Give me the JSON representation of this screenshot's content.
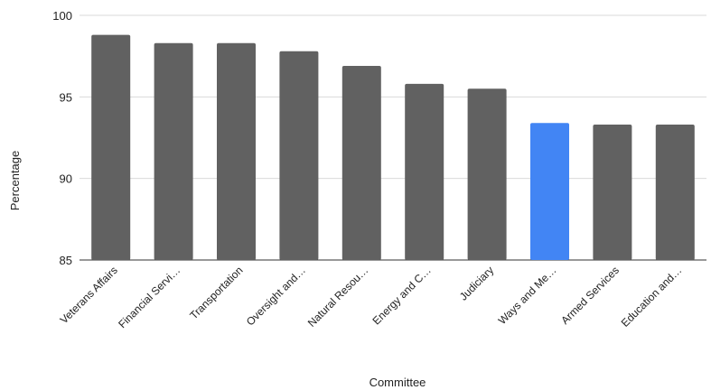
{
  "chart_data": {
    "type": "bar",
    "title": "",
    "xlabel": "Committee",
    "ylabel": "Percentage",
    "ylim": [
      85,
      100
    ],
    "yticks": [
      85,
      90,
      95,
      100
    ],
    "grid": true,
    "categories": [
      "Veterans Affairs",
      "Financial Servi…",
      "Transportation",
      "Oversight and…",
      "Natural Resou…",
      "Energy and C…",
      "Judiciary",
      "Ways and Me…",
      "Armed Services",
      "Education and…"
    ],
    "values": [
      98.8,
      98.3,
      98.3,
      97.8,
      96.9,
      95.8,
      95.5,
      93.4,
      93.3,
      93.3
    ],
    "colors": {
      "default": "#616161",
      "highlight": "#4285f4"
    },
    "highlight_category": "Ways and Me…"
  }
}
